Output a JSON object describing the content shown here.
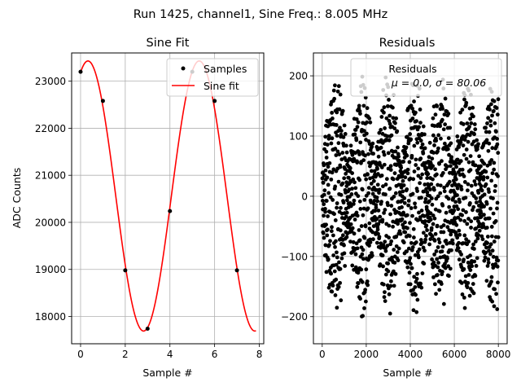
{
  "suptitle": "Run 1425, channel1, Sine Freq.: 8.005 MHz",
  "chart_data": [
    {
      "type": "line",
      "title": "Sine Fit",
      "xlabel": "Sample #",
      "ylabel": "ADC Counts",
      "xlim": [
        -0.4,
        8.2
      ],
      "ylim": [
        17420,
        23600
      ],
      "xticks": [
        "0",
        "2",
        "4",
        "6",
        "8"
      ],
      "xtick_values": [
        0,
        2,
        4,
        6,
        8
      ],
      "yticks": [
        "18000",
        "19000",
        "20000",
        "21000",
        "22000",
        "23000"
      ],
      "ytick_values": [
        18000,
        19000,
        20000,
        21000,
        22000,
        23000
      ],
      "grid": true,
      "legend_position": "top-right",
      "series": [
        {
          "name": "Samples",
          "kind": "scatter",
          "color": "#000000",
          "x": [
            0,
            1,
            2,
            3,
            4,
            5,
            6,
            7
          ],
          "y": [
            23200,
            22580,
            18980,
            17740,
            20240,
            23200,
            22580,
            18980
          ]
        },
        {
          "name": "Sine fit",
          "kind": "line",
          "color": "#ff0000",
          "offset": 20560,
          "amplitude": 2870,
          "period": 4.98,
          "peak_x": 0.33,
          "x_range": [
            0,
            7.85
          ]
        }
      ]
    },
    {
      "type": "scatter",
      "title": "Residuals",
      "xlabel": "Sample #",
      "ylabel": "",
      "xlim": [
        -400,
        8400
      ],
      "ylim": [
        -245,
        238
      ],
      "xticks": [
        "0",
        "2000",
        "4000",
        "6000",
        "8000"
      ],
      "xtick_values": [
        0,
        2000,
        4000,
        6000,
        8000
      ],
      "yticks": [
        "−200",
        "−100",
        "0",
        "100",
        "200"
      ],
      "ytick_values": [
        -200,
        -100,
        0,
        100,
        200
      ],
      "grid": true,
      "legend_position": "top-right",
      "legend_title": "Residuals",
      "legend_text": "μ = 0.0, σ = 80.06",
      "series": [
        {
          "name": "Residuals",
          "color": "#000000",
          "x_range": [
            0,
            8000
          ],
          "envelope_period": 1200,
          "max_amplitude": 205,
          "min_value": -225
        }
      ]
    }
  ]
}
